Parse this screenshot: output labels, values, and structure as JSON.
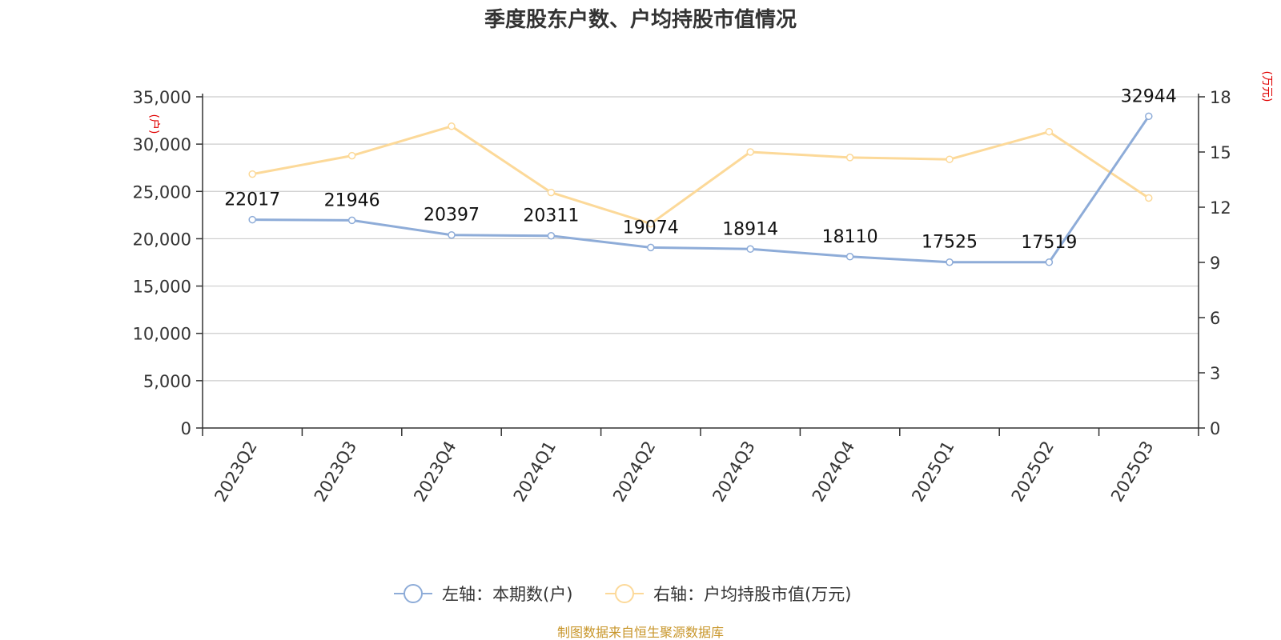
{
  "chart_data": {
    "type": "line",
    "title": "季度股东户数、户均持股市值情况",
    "categories": [
      "2023Q2",
      "2023Q3",
      "2023Q4",
      "2024Q1",
      "2024Q2",
      "2024Q3",
      "2024Q4",
      "2025Q1",
      "2025Q2",
      "2025Q3"
    ],
    "y_left": {
      "unit": "(户)",
      "range": [
        0,
        35000
      ],
      "ticks": [
        "0",
        "5,000",
        "10,000",
        "15,000",
        "20,000",
        "25,000",
        "30,000",
        "35,000"
      ],
      "tick_values": [
        0,
        5000,
        10000,
        15000,
        20000,
        25000,
        30000,
        35000
      ]
    },
    "y_right": {
      "unit": "(万元)",
      "range": [
        0,
        18
      ],
      "ticks": [
        "0",
        "3",
        "6",
        "9",
        "12",
        "15",
        "18"
      ],
      "tick_values": [
        0,
        3,
        6,
        9,
        12,
        15,
        18
      ]
    },
    "grid": true,
    "legend_position": "bottom-center",
    "series": [
      {
        "name": "左轴：本期数(户)",
        "axis": "left",
        "color": "#8eacd8",
        "values": [
          22017,
          21946,
          20397,
          20311,
          19074,
          18914,
          18110,
          17525,
          17519,
          32944
        ],
        "labels": [
          "22017",
          "21946",
          "20397",
          "20311",
          "19074",
          "18914",
          "18110",
          "17525",
          "17519",
          "32944"
        ]
      },
      {
        "name": "右轴：户均持股市值(万元)",
        "axis": "right",
        "color": "#fcd999",
        "values": [
          13.8,
          14.8,
          16.4,
          12.8,
          11.1,
          15.0,
          14.7,
          14.6,
          16.1,
          12.5
        ]
      }
    ],
    "source": "制图数据来自恒生聚源数据库"
  }
}
